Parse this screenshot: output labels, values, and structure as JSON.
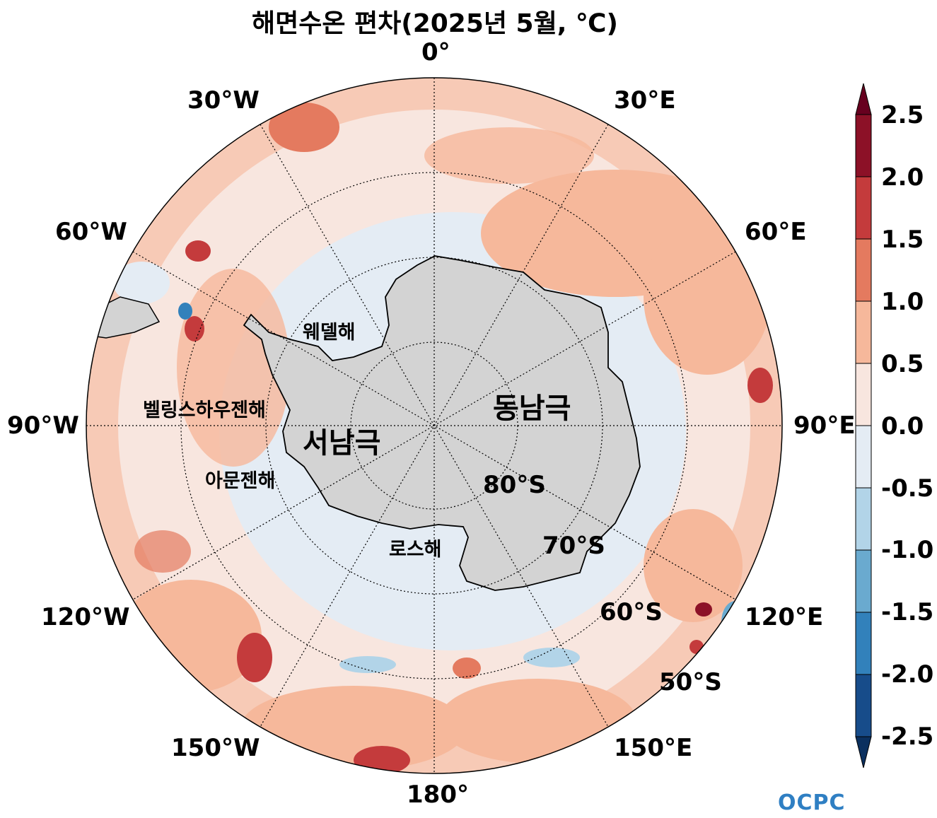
{
  "title": "해면수온 편차(2025년 5월, ℃)",
  "longitude_labels": {
    "lon_0": "0°",
    "lon_30e": "30°E",
    "lon_60e": "60°E",
    "lon_90e": "90°E",
    "lon_120e": "120°E",
    "lon_150e": "150°E",
    "lon_180": "180°",
    "lon_150w": "150°W",
    "lon_120w": "120°W",
    "lon_90w": "90°W",
    "lon_60w": "60°W",
    "lon_30w": "30°W"
  },
  "latitude_labels": {
    "lat_80": "80°S",
    "lat_70": "70°S",
    "lat_60": "60°S",
    "lat_50": "50°S"
  },
  "place_labels": {
    "weddell": "웨델해",
    "bellingshausen": "벨링스하우젠해",
    "amundsen": "아문젠해",
    "ross": "로스해",
    "east_antarctica": "동남극",
    "west_antarctica": "서남극"
  },
  "colorbar": {
    "ticks": [
      "2.5",
      "2.0",
      "1.5",
      "1.0",
      "0.5",
      "0.0",
      "-0.5",
      "-1.0",
      "-1.5",
      "-2.0",
      "-2.5"
    ],
    "colors": [
      "#67001f",
      "#8c1127",
      "#c43b3c",
      "#e47a5f",
      "#f6b89b",
      "#f8e6df",
      "#e4ecf4",
      "#b2d4e8",
      "#6aaacf",
      "#3281bb",
      "#174c8a",
      "#0b305f"
    ]
  },
  "logo": "OCPC"
}
